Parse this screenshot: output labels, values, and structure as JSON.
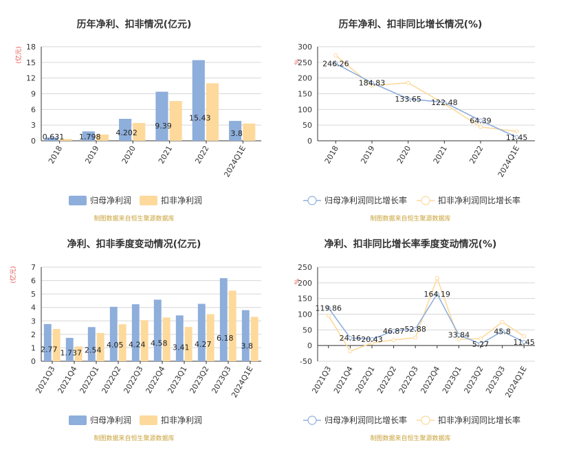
{
  "colors": {
    "series1": "#8eaedb",
    "series2": "#fdd99b",
    "grid": "#d6d6d6",
    "axis": "#333333"
  },
  "chart_data": [
    {
      "id": "annual-profit",
      "type": "bar",
      "title": "历年净利、扣非情况(亿元)",
      "unit": "(亿元)",
      "categories": [
        "2018",
        "2019",
        "2020",
        "2021",
        "2022",
        "2024Q1E"
      ],
      "series": [
        {
          "name": "归母净利润",
          "values": [
            0.631,
            1.798,
            4.202,
            9.39,
            15.43,
            3.8
          ],
          "labels": [
            "0.631",
            "1.798",
            "4.202",
            "9.39",
            "15.43",
            "3.8"
          ]
        },
        {
          "name": "扣非净利润",
          "values": [
            0.35,
            1.2,
            3.4,
            7.6,
            11.0,
            3.3
          ]
        }
      ],
      "ylim": [
        0,
        18
      ],
      "yticks": [
        0,
        3,
        6,
        9,
        12,
        15,
        18
      ],
      "legend": "bottom",
      "source": "制图数据来自恒生聚源数据库"
    },
    {
      "id": "annual-growth",
      "type": "line",
      "title": "历年净利、扣非同比增长情况(%)",
      "unit": "%",
      "categories": [
        "2018",
        "2019",
        "2020",
        "2021",
        "2022",
        "2024Q1E"
      ],
      "series": [
        {
          "name": "归母净利润同比增长率",
          "values": [
            246.26,
            184.83,
            133.65,
            122.48,
            64.39,
            11.45
          ],
          "labels": [
            "246.26",
            "184.83",
            "133.65",
            "122.48",
            "64.39",
            "11.45"
          ]
        },
        {
          "name": "扣非净利润同比增长率",
          "values": [
            272,
            176,
            185,
            118,
            44,
            30
          ]
        }
      ],
      "ylim": [
        0,
        300
      ],
      "yticks": [
        0,
        50,
        100,
        150,
        200,
        250,
        300
      ],
      "legend": "bottom",
      "source": "制图数据来自恒生聚源数据库"
    },
    {
      "id": "quarterly-profit",
      "type": "bar",
      "title": "净利、扣非季度变动情况(亿元)",
      "unit": "(亿元)",
      "categories": [
        "2021Q3",
        "2021Q4",
        "2022Q1",
        "2022Q2",
        "2022Q3",
        "2022Q4",
        "2023Q1",
        "2023Q2",
        "2023Q3",
        "2024Q1E"
      ],
      "series": [
        {
          "name": "归母净利润",
          "values": [
            2.77,
            1.737,
            2.54,
            4.05,
            4.24,
            4.58,
            3.41,
            4.27,
            6.18,
            3.8
          ],
          "labels": [
            "2.77",
            "1.737",
            "2.54",
            "4.05",
            "4.24",
            "4.58",
            "3.41",
            "4.27",
            "6.18",
            "3.8"
          ]
        },
        {
          "name": "扣非净利润",
          "values": [
            2.4,
            1.1,
            2.1,
            2.75,
            3.05,
            3.25,
            2.55,
            3.5,
            5.25,
            3.3
          ]
        }
      ],
      "ylim": [
        0,
        7
      ],
      "yticks": [
        0,
        1,
        2,
        3,
        4,
        5,
        6,
        7
      ],
      "legend": "bottom",
      "source": "制图数据来自恒生聚源数据库"
    },
    {
      "id": "quarterly-growth",
      "type": "line",
      "title": "净利、扣非同比增长率季度变动情况(%)",
      "unit": "%",
      "categories": [
        "2021Q3",
        "2021Q4",
        "2022Q1",
        "2022Q2",
        "2022Q3",
        "2022Q4",
        "2023Q1",
        "2023Q2",
        "2023Q3",
        "2024Q1E"
      ],
      "series": [
        {
          "name": "归母净利润同比增长率",
          "values": [
            119.86,
            24.16,
            20.43,
            46.87,
            52.88,
            164.19,
            33.84,
            5.27,
            45.8,
            11.45
          ],
          "labels": [
            "119.86",
            "24.16",
            "20.43",
            "46.87",
            "52.88",
            "164.19",
            "33.84",
            "5.27",
            "45.8",
            "11.45"
          ]
        },
        {
          "name": "扣非净利润同比增长率",
          "values": [
            95,
            -18,
            8,
            18,
            25,
            215,
            20,
            22,
            75,
            30
          ]
        }
      ],
      "ylim": [
        -50,
        250
      ],
      "yticks": [
        -50,
        0,
        50,
        100,
        150,
        200,
        250
      ],
      "legend": "bottom",
      "source": "制图数据来自恒生聚源数据库"
    }
  ]
}
